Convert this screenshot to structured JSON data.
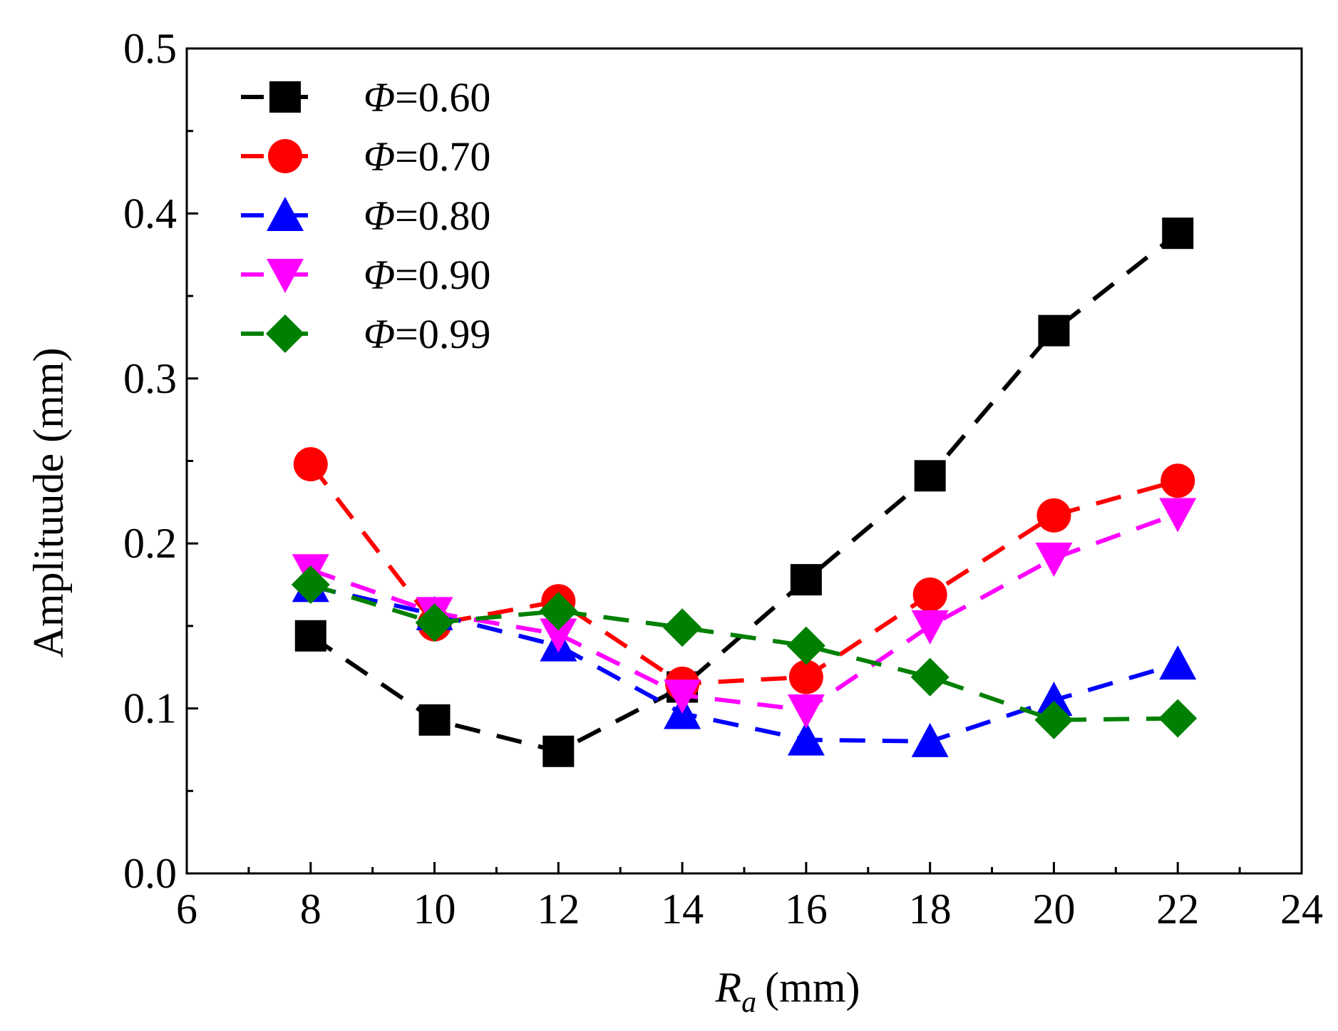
{
  "chart_data": {
    "type": "line",
    "xlabel": {
      "symbol": "R",
      "subscript": "a",
      "unit": "(mm)"
    },
    "ylabel": "Amplituude (mm)",
    "xlim": [
      6,
      24
    ],
    "ylim": [
      0.0,
      0.5
    ],
    "xticks": [
      "6",
      "8",
      "10",
      "12",
      "14",
      "16",
      "18",
      "20",
      "22",
      "24"
    ],
    "yticks": [
      "0.0",
      "0.1",
      "0.2",
      "0.3",
      "0.4",
      "0.5"
    ],
    "grid": false,
    "legend_position": "top-left",
    "x": [
      8,
      10,
      12,
      14,
      16,
      18,
      20,
      22
    ],
    "series": [
      {
        "symbol": "Φ",
        "value_label": "=0.60",
        "color": "#000000",
        "marker": "square",
        "values": [
          0.144,
          0.093,
          0.074,
          0.113,
          0.178,
          0.241,
          0.329,
          0.388
        ]
      },
      {
        "symbol": "Φ",
        "value_label": "=0.70",
        "color": "#ff0000",
        "marker": "circle",
        "values": [
          0.248,
          0.151,
          0.165,
          0.115,
          0.119,
          0.169,
          0.217,
          0.238
        ]
      },
      {
        "symbol": "Φ",
        "value_label": "=0.80",
        "color": "#0000ff",
        "marker": "triangle-up",
        "values": [
          0.174,
          0.157,
          0.138,
          0.097,
          0.081,
          0.08,
          0.105,
          0.127
        ]
      },
      {
        "symbol": "Φ",
        "value_label": "=0.90",
        "color": "#ff00ff",
        "marker": "triangle-down",
        "values": [
          0.184,
          0.158,
          0.145,
          0.108,
          0.099,
          0.15,
          0.191,
          0.218
        ]
      },
      {
        "symbol": "Φ",
        "value_label": "=0.99",
        "color": "#008000",
        "marker": "diamond",
        "values": [
          0.175,
          0.152,
          0.159,
          0.149,
          0.138,
          0.119,
          0.093,
          0.094
        ]
      }
    ]
  }
}
